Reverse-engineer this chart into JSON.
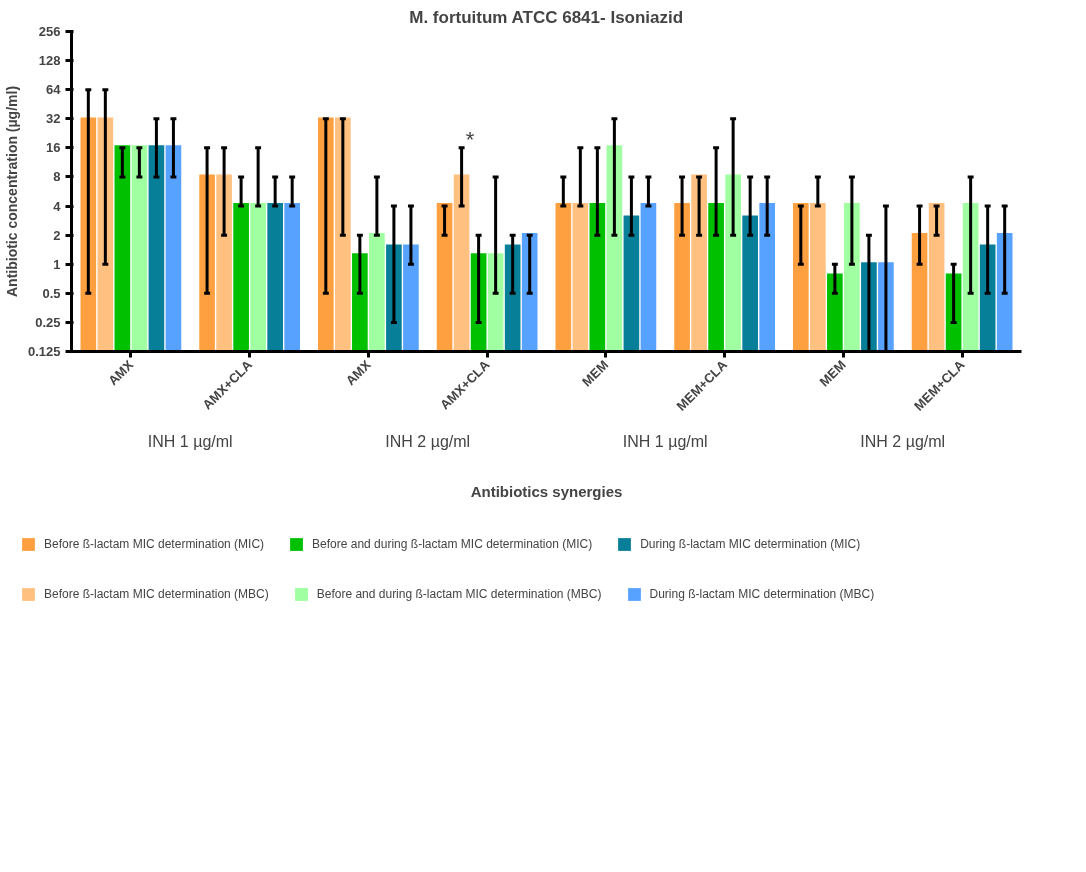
{
  "chart_data": {
    "type": "bar",
    "title": "M. fortuitum ATCC 6841- Isoniazid",
    "xlabel": "Antibiotics synergies",
    "ylabel": "Antibiotic concentration (µg/ml)",
    "categories": [
      "AMX",
      "AMX+CLA",
      "AMX",
      "AMX+CLA",
      "MEM",
      "MEM+CLA",
      "MEM",
      "MEM+CLA"
    ],
    "log": true,
    "ylim": [
      0.125,
      256
    ],
    "yticks": [
      0.125,
      0.25,
      0.5,
      1,
      2,
      4,
      8,
      16,
      32,
      64,
      128,
      256
    ],
    "grid": false,
    "legend": "bottom",
    "annotations": [
      "INH 1 µg/ml",
      "INH 2 µg/ml",
      "INH 1 µg/ml",
      "INH 2 µg/ml",
      "*"
    ],
    "series": [
      {
        "name": "Before ß-lactam MIC determination (MIC)",
        "color": "#ffa040",
        "values": [
          33,
          8.5,
          33,
          4.3,
          4.3,
          4.3,
          4.3,
          2.1
        ],
        "errors": [
          [
            0.5,
            64
          ],
          [
            0.5,
            16
          ],
          [
            0.5,
            32
          ],
          [
            2,
            4
          ],
          [
            4,
            8
          ],
          [
            2,
            8
          ],
          [
            1,
            4
          ],
          [
            1,
            4
          ]
        ]
      },
      {
        "name": "Before ß-lactam MIC determination (MBC)",
        "color": "#ffc080",
        "values": [
          33,
          8.5,
          33,
          8.5,
          4.3,
          8.5,
          4.3,
          4.3
        ],
        "errors": [
          [
            1,
            64
          ],
          [
            2,
            16
          ],
          [
            2,
            32
          ],
          [
            4,
            16
          ],
          [
            4,
            16
          ],
          [
            2,
            8
          ],
          [
            4,
            8
          ],
          [
            2,
            4
          ]
        ]
      },
      {
        "name": "Before and during ß-lactam MIC determination (MIC)",
        "color": "#00c000",
        "values": [
          17,
          4.3,
          1.3,
          1.3,
          4.3,
          4.3,
          0.8,
          0.8
        ],
        "errors": [
          [
            8,
            16
          ],
          [
            4,
            8
          ],
          [
            0.5,
            2
          ],
          [
            0.25,
            2
          ],
          [
            2,
            16
          ],
          [
            2,
            16
          ],
          [
            0.5,
            1
          ],
          [
            0.25,
            1
          ]
        ]
      },
      {
        "name": "Before and during ß-lactam MIC determination (MBC)",
        "color": "#a0ffa0",
        "values": [
          17,
          4.3,
          2.1,
          1.3,
          17,
          8.5,
          4.3,
          4.3
        ],
        "errors": [
          [
            8,
            16
          ],
          [
            4,
            16
          ],
          [
            2,
            8
          ],
          [
            0.5,
            8
          ],
          [
            2,
            32
          ],
          [
            2,
            32
          ],
          [
            1,
            8
          ],
          [
            0.5,
            8
          ]
        ]
      },
      {
        "name": "During ß-lactam MIC determination (MIC)",
        "color": "#087f99",
        "values": [
          17,
          4.3,
          1.6,
          1.6,
          3.2,
          3.2,
          1.05,
          1.6
        ],
        "errors": [
          [
            8,
            32
          ],
          [
            4,
            8
          ],
          [
            0.25,
            4
          ],
          [
            0.5,
            2
          ],
          [
            2,
            8
          ],
          [
            2,
            8
          ],
          [
            0.125,
            2
          ],
          [
            0.5,
            4
          ]
        ]
      },
      {
        "name": "During ß-lactam MIC determination (MBC)",
        "color": "#58a2ff",
        "values": [
          17,
          4.3,
          1.6,
          2.1,
          4.3,
          4.3,
          1.05,
          2.1
        ],
        "errors": [
          [
            8,
            32
          ],
          [
            4,
            8
          ],
          [
            1,
            4
          ],
          [
            0.5,
            2
          ],
          [
            4,
            8
          ],
          [
            2,
            8
          ],
          [
            0.125,
            4
          ],
          [
            0.5,
            4
          ]
        ]
      }
    ]
  }
}
